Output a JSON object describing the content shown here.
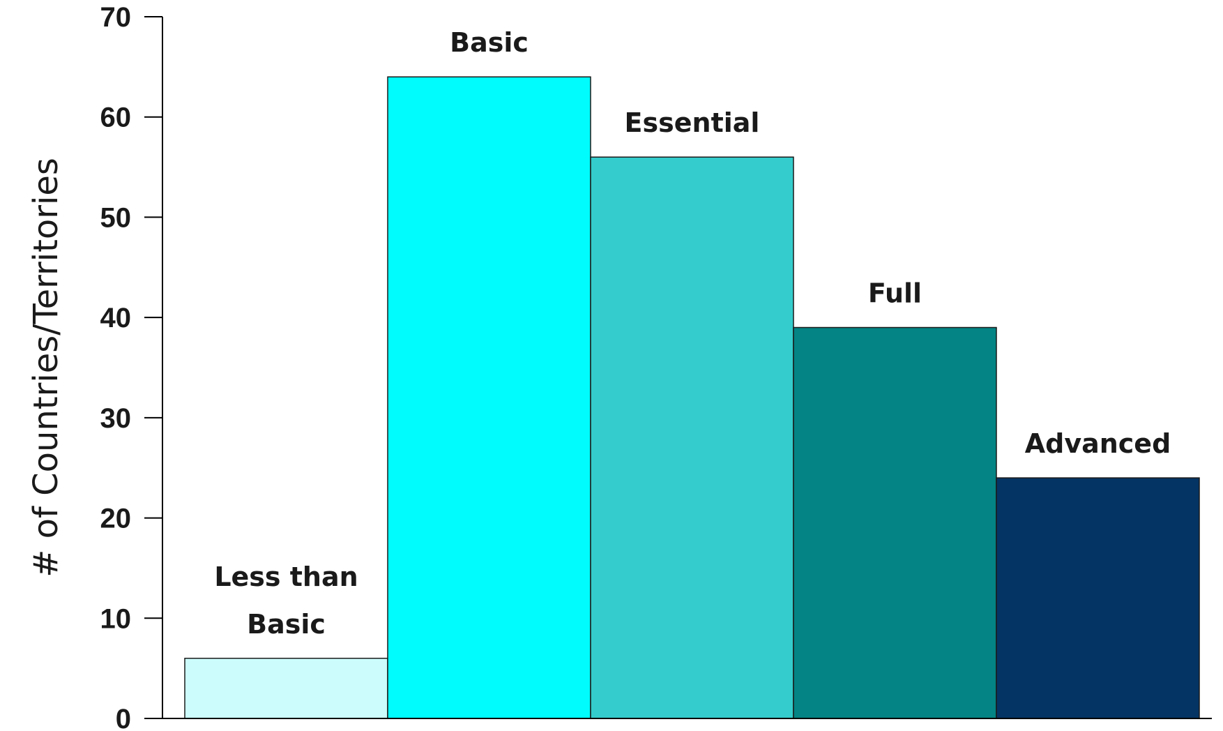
{
  "chart_data": {
    "type": "bar",
    "title": "",
    "xlabel": "",
    "ylabel": "# of Countries/Territories",
    "ylim": [
      0,
      70
    ],
    "yticks": [
      "0",
      "10",
      "20",
      "30",
      "40",
      "50",
      "60",
      "70"
    ],
    "grid": false,
    "categories": [
      {
        "label": [
          "Less than",
          "Basic"
        ],
        "value": 6,
        "color": "#ccfcfc"
      },
      {
        "label": [
          "Basic"
        ],
        "value": 64,
        "color": "#00fcfc"
      },
      {
        "label": [
          "Essential"
        ],
        "value": 56,
        "color": "#34cccc"
      },
      {
        "label": [
          "Full"
        ],
        "value": 39,
        "color": "#048484"
      },
      {
        "label": [
          "Advanced"
        ],
        "value": 24,
        "color": "#043464"
      }
    ]
  }
}
